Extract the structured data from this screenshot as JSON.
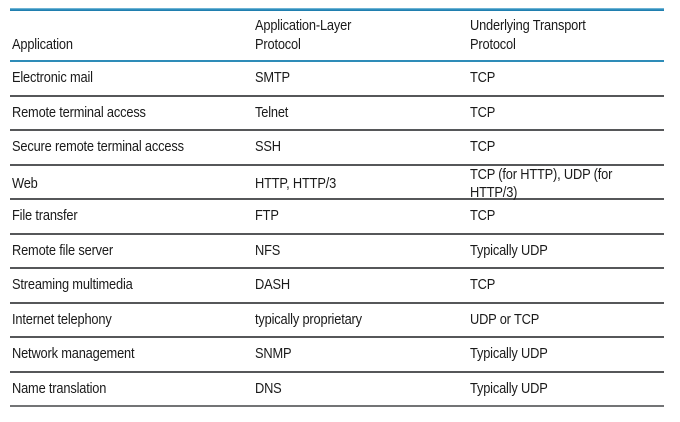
{
  "table": {
    "headers": {
      "application": "Application",
      "app_layer_protocol": "Application-Layer\nProtocol",
      "transport_protocol": "Underlying Transport\nProtocol"
    },
    "rows": [
      {
        "application": "Electronic mail",
        "protocol": "SMTP",
        "transport": "TCP"
      },
      {
        "application": "Remote terminal access",
        "protocol": "Telnet",
        "transport": "TCP"
      },
      {
        "application": "Secure remote terminal access",
        "protocol": "SSH",
        "transport": "TCP"
      },
      {
        "application": "Web",
        "protocol": "HTTP, HTTP/3",
        "transport": "TCP (for HTTP), UDP (for HTTP/3)"
      },
      {
        "application": "File transfer",
        "protocol": "FTP",
        "transport": "TCP"
      },
      {
        "application": "Remote file server",
        "protocol": "NFS",
        "transport": "Typically UDP"
      },
      {
        "application": "Streaming multimedia",
        "protocol": "DASH",
        "transport": "TCP"
      },
      {
        "application": "Internet telephony",
        "protocol": "typically proprietary",
        "transport": "UDP or TCP"
      },
      {
        "application": "Network management",
        "protocol": "SNMP",
        "transport": "Typically UDP"
      },
      {
        "application": "Name translation",
        "protocol": "DNS",
        "transport": "Typically UDP"
      }
    ],
    "colors": {
      "rule_blue": "#2e8cb8",
      "rule_gray": "#565759",
      "text": "#1a1a1a"
    }
  }
}
